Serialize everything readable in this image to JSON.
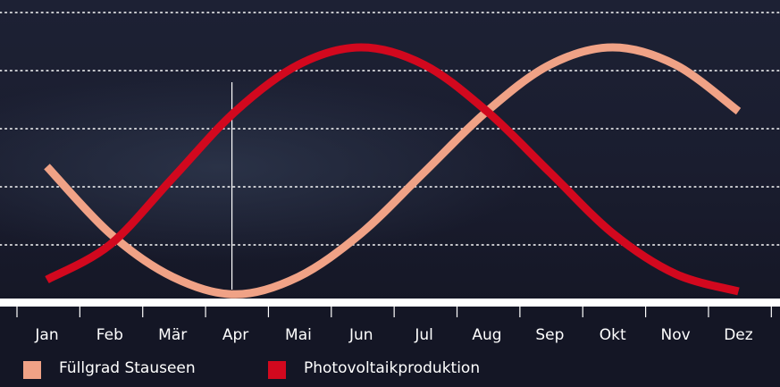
{
  "chart_data": {
    "type": "line",
    "title": "",
    "xlabel": "",
    "ylabel": "",
    "categories": [
      "Jan",
      "Feb",
      "Mär",
      "Apr",
      "Mai",
      "Jun",
      "Jul",
      "Aug",
      "Sep",
      "Okt",
      "Nov",
      "Dez"
    ],
    "series": [
      {
        "name": "Füllgrad Stauseen",
        "color": "#f0a286",
        "points": [
          {
            "x": "Jan",
            "y": 47
          },
          {
            "x": "Feb",
            "y": 24
          },
          {
            "x": "Mär",
            "y": 9
          },
          {
            "x": "Apr",
            "y": 3
          },
          {
            "x": "Mai",
            "y": 9
          },
          {
            "x": "Jun",
            "y": 24
          },
          {
            "x": "Jul",
            "y": 45
          },
          {
            "x": "Aug",
            "y": 66
          },
          {
            "x": "Sep",
            "y": 82
          },
          {
            "x": "Okt",
            "y": 88
          },
          {
            "x": "Nov",
            "y": 82
          },
          {
            "x": "Dez",
            "y": 66
          }
        ]
      },
      {
        "name": "Photovoltaikproduktion",
        "color": "#d2081e",
        "points": [
          {
            "x": "Jan",
            "y": 8
          },
          {
            "x": "Feb",
            "y": 20
          },
          {
            "x": "Mär",
            "y": 43
          },
          {
            "x": "Apr",
            "y": 66
          },
          {
            "x": "Mai",
            "y": 82
          },
          {
            "x": "Jun",
            "y": 88
          },
          {
            "x": "Jul",
            "y": 82
          },
          {
            "x": "Aug",
            "y": 66
          },
          {
            "x": "Sep",
            "y": 45
          },
          {
            "x": "Okt",
            "y": 24
          },
          {
            "x": "Nov",
            "y": 10
          },
          {
            "x": "Dez",
            "y": 4
          }
        ]
      }
    ],
    "ylim": [
      0,
      100
    ],
    "y_ticks": [
      20,
      40,
      60,
      80,
      100
    ],
    "marker": {
      "x": "Apr"
    },
    "grid": true,
    "legend": "bottom-left"
  }
}
